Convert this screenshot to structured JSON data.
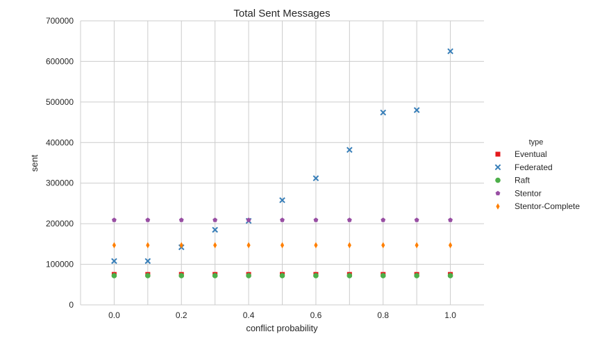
{
  "chart_data": {
    "type": "scatter",
    "title": "Total Sent Messages",
    "xlabel": "conflict probability",
    "ylabel": "sent",
    "xlim": [
      -0.1,
      1.1
    ],
    "ylim": [
      0,
      700000
    ],
    "x_ticks": [
      "0.0",
      "0.2",
      "0.4",
      "0.6",
      "0.8",
      "1.0"
    ],
    "y_ticks": [
      "0",
      "100000",
      "200000",
      "300000",
      "400000",
      "500000",
      "600000",
      "700000"
    ],
    "grid": true,
    "legend": {
      "title": "type",
      "placement": "right"
    },
    "x": [
      0.0,
      0.1,
      0.2,
      0.3,
      0.4,
      0.5,
      0.6,
      0.7,
      0.8,
      0.9,
      1.0
    ],
    "series": [
      {
        "name": "Eventual",
        "marker": "square",
        "color": "#e41a1c",
        "values": [
          75000,
          75000,
          75000,
          75000,
          75000,
          75000,
          75000,
          75000,
          75000,
          75000,
          75000
        ]
      },
      {
        "name": "Federated",
        "marker": "x",
        "color": "#377eb8",
        "values": [
          108000,
          108000,
          142000,
          185000,
          207000,
          258000,
          312000,
          382000,
          474000,
          480000,
          625000
        ]
      },
      {
        "name": "Raft",
        "marker": "circle",
        "color": "#4daf4a",
        "values": [
          72000,
          72000,
          72000,
          72000,
          72000,
          72000,
          72000,
          72000,
          72000,
          72000,
          72000
        ]
      },
      {
        "name": "Stentor",
        "marker": "pentagon",
        "color": "#984ea3",
        "values": [
          209000,
          209000,
          209000,
          209000,
          209000,
          209000,
          209000,
          209000,
          209000,
          209000,
          209000
        ]
      },
      {
        "name": "Stentor-Complete",
        "marker": "diamond",
        "color": "#ff7f00",
        "values": [
          147000,
          147000,
          147000,
          147000,
          147000,
          147000,
          147000,
          147000,
          147000,
          147000,
          147000
        ]
      }
    ]
  }
}
